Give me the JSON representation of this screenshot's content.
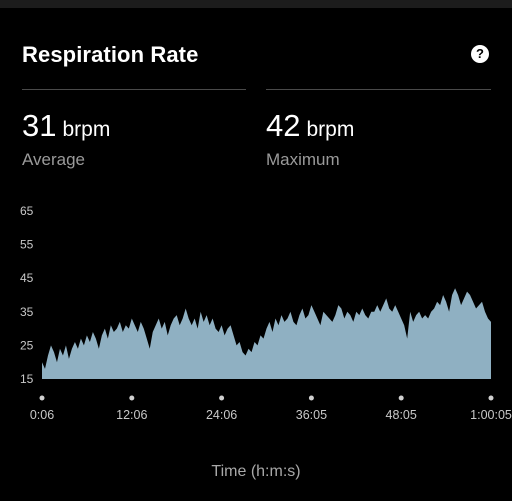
{
  "card": {
    "title": "Respiration Rate",
    "help_icon": "question-circle-icon",
    "help_glyph": "?"
  },
  "stats": [
    {
      "value": "31",
      "unit": "brpm",
      "label": "Average"
    },
    {
      "value": "42",
      "unit": "brpm",
      "label": "Maximum"
    }
  ],
  "chart_data": {
    "type": "area",
    "xlabel": "Time (h:m:s)",
    "ylabel": "",
    "ylim": [
      15,
      65
    ],
    "yticks": [
      15,
      25,
      35,
      45,
      55,
      65
    ],
    "xticks": [
      "0:06",
      "12:06",
      "24:06",
      "36:05",
      "48:05",
      "1:00:05"
    ],
    "x_range_minutes": [
      0.1,
      60.08
    ],
    "grid": false,
    "fill_color": "#8fb0c2",
    "series": [
      {
        "values": [
          20,
          18,
          22,
          25,
          23,
          20,
          24,
          22,
          25,
          21,
          24,
          26,
          24,
          27,
          25,
          28,
          26,
          29,
          27,
          24,
          28,
          30,
          27,
          31,
          29,
          30,
          32,
          29,
          31,
          30,
          33,
          31,
          29,
          32,
          30,
          27,
          24,
          29,
          31,
          33,
          30,
          32,
          28,
          31,
          33,
          34,
          31,
          33,
          36,
          33,
          31,
          33,
          30,
          35,
          32,
          34,
          31,
          33,
          30,
          29,
          31,
          28,
          30,
          31,
          28,
          25,
          26,
          23,
          22,
          24,
          23,
          26,
          25,
          28,
          27,
          30,
          32,
          29,
          33,
          31,
          34,
          32,
          33,
          35,
          32,
          31,
          34,
          36,
          33,
          34,
          37,
          35,
          33,
          31,
          35,
          34,
          33,
          32,
          34,
          37,
          36,
          33,
          35,
          34,
          32,
          35,
          34,
          36,
          34,
          33,
          35,
          35,
          37,
          35,
          37,
          39,
          36,
          35,
          37,
          35,
          33,
          31,
          27,
          35,
          32,
          34,
          35,
          33,
          34,
          33,
          35,
          36,
          38,
          37,
          40,
          38,
          35,
          40,
          42,
          40,
          37,
          39,
          41,
          40,
          38,
          36,
          37,
          38,
          35,
          33,
          32
        ]
      }
    ]
  }
}
